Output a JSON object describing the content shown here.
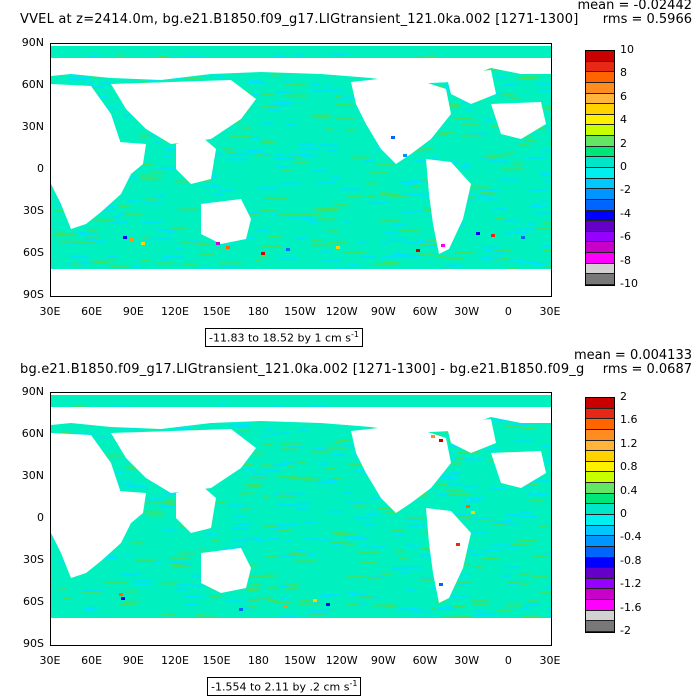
{
  "panels": [
    {
      "title": "VVEL at z=2414.0m, bg.e21.B1850.f09_g17.LIGtransient_121.0ka.002 [1271-1300]",
      "mean": "mean = -0.02442",
      "rms": "rms = 0.5966",
      "range_label": "-11.83 to 18.52 by 1 cm s",
      "range_exp": "-1",
      "colorbar_labels": [
        "10",
        "8",
        "6",
        "4",
        "2",
        "0",
        "-2",
        "-4",
        "-6",
        "-8",
        "-10"
      ],
      "colorbar_colors": [
        "#c80000",
        "#e62814",
        "#ff6400",
        "#ff8c1e",
        "#ffb43c",
        "#ffd200",
        "#fff000",
        "#c8ff00",
        "#64e664",
        "#00e678",
        "#00e6c8",
        "#00f0f0",
        "#00c8ff",
        "#0096ff",
        "#0064ff",
        "#0000ff",
        "#6400c8",
        "#9600ff",
        "#c800c8",
        "#ff00ff",
        "#d2d2d2",
        "#787878"
      ]
    },
    {
      "title": "bg.e21.B1850.f09_g17.LIGtransient_121.0ka.002 [1271-1300] - bg.e21.B1850.f09_g",
      "mean": "mean = 0.004133",
      "rms": "rms = 0.0687",
      "range_label": "-1.554 to 2.11 by .2 cm s",
      "range_exp": "-1",
      "colorbar_labels": [
        "2",
        "1.6",
        "1.2",
        "0.8",
        "0.4",
        "0",
        "-0.4",
        "-0.8",
        "-1.2",
        "-1.6",
        "-2"
      ],
      "colorbar_colors": [
        "#c80000",
        "#e62814",
        "#ff6400",
        "#ff8c1e",
        "#ffb43c",
        "#ffd200",
        "#fff000",
        "#c8ff00",
        "#64e664",
        "#00e678",
        "#00e6c8",
        "#00f0f0",
        "#00c8ff",
        "#0096ff",
        "#0064ff",
        "#0000ff",
        "#6400c8",
        "#9600ff",
        "#c800c8",
        "#ff00ff",
        "#d2d2d2",
        "#787878"
      ]
    }
  ],
  "lat_labels": [
    "90N",
    "60N",
    "30N",
    "0",
    "30S",
    "60S",
    "90S"
  ],
  "lon_labels": [
    "30E",
    "60E",
    "90E",
    "120E",
    "150E",
    "180",
    "150W",
    "120W",
    "90W",
    "60W",
    "30W",
    "0",
    "30E"
  ],
  "colors": {
    "ocean_main": "#00f0c0",
    "ocean_alt": "#00e0ff",
    "ocean_green": "#40e060",
    "land": "#ffffff"
  }
}
